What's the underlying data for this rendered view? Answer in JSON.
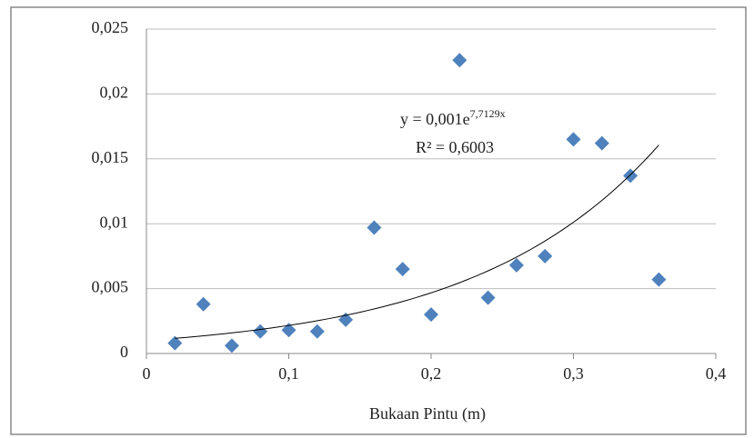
{
  "chart_data": {
    "type": "scatter",
    "x_label": "Bukaan Pintu (m)",
    "color": "#4f81bd",
    "grid": true,
    "x": [
      0.02,
      0.04,
      0.06,
      0.08,
      0.1,
      0.12,
      0.14,
      0.16,
      0.18,
      0.2,
      0.22,
      0.24,
      0.26,
      0.28,
      0.3,
      0.32,
      0.34,
      0.36
    ],
    "values": [
      0.0008,
      0.0038,
      0.0006,
      0.0017,
      0.0018,
      0.0017,
      0.0026,
      0.0097,
      0.0065,
      0.003,
      0.0226,
      0.0043,
      0.0068,
      0.0075,
      0.0165,
      0.0162,
      0.0137,
      0.0057
    ],
    "xlim": [
      0,
      0.4
    ],
    "xticks": [
      0,
      {
        "value": 0.1,
        "label": "0,1"
      },
      {
        "value": 0.2,
        "label": "0,2"
      },
      {
        "value": 0.3,
        "label": "0,3"
      },
      {
        "value": 0.4,
        "label": "0,4"
      }
    ],
    "ylim": [
      0,
      0.025
    ],
    "yticks": [
      0,
      {
        "value": 0.005,
        "label": "0,005"
      },
      {
        "value": 0.01,
        "label": "0,01"
      },
      {
        "value": 0.015,
        "label": "0,015"
      },
      {
        "value": 0.02,
        "label": "0,02"
      },
      {
        "value": 0.025,
        "label": "0,025"
      }
    ],
    "trendline": {
      "equation": "y = 0,001e",
      "exponent": "7,7129x",
      "r2": "R² = 0,6003",
      "a": 0.001,
      "b": 7.7129,
      "xlim": [
        0.02,
        0.36
      ]
    }
  }
}
